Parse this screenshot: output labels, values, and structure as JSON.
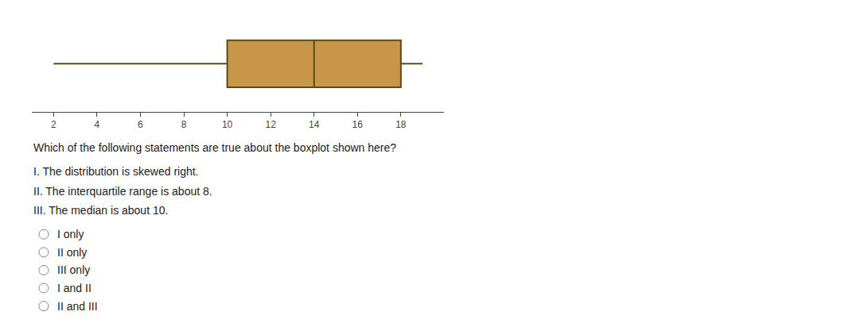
{
  "chart_data": {
    "type": "box",
    "min": 2,
    "q1": 10,
    "median": 14,
    "q3": 18,
    "max": 19,
    "xlim": [
      1,
      20
    ],
    "xticks": [
      2,
      4,
      6,
      8,
      10,
      12,
      14,
      16,
      18
    ],
    "color": "#C89648",
    "grid": false,
    "tick_labels": "x",
    "question": "Which of the following statements are true about the boxplot shown here?",
    "statements": [
      "I. The distribution is skewed right.",
      "II. The interquartile range is about 8.",
      "III. The median is about 10."
    ],
    "options": [
      "I only",
      "II only",
      "III only",
      "I and II",
      "II and III"
    ]
  }
}
